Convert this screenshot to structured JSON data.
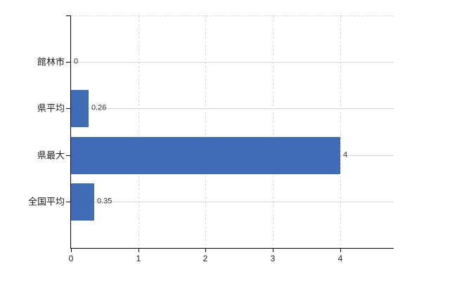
{
  "chart_data": {
    "type": "bar",
    "orientation": "horizontal",
    "title": "",
    "xlabel": "",
    "ylabel": "",
    "categories": [
      "館林市",
      "県平均",
      "県最大",
      "全国平均"
    ],
    "values": [
      0,
      0.26,
      4,
      0.35
    ],
    "value_labels": [
      "0",
      "0.26",
      "4",
      "0.35"
    ],
    "xlim": [
      0,
      4.8
    ],
    "xticks": [
      {
        "value": 0,
        "label": "0"
      },
      {
        "value": 1,
        "label": "1"
      },
      {
        "value": 2,
        "label": "2"
      },
      {
        "value": 3,
        "label": "3"
      },
      {
        "value": 4,
        "label": "4"
      }
    ],
    "grid": "on",
    "legend": "none",
    "colors": {
      "bar": "#3e6db5",
      "axis": "#000000",
      "gridline_solid": "#d9d9d9",
      "gridline_dashed": "#d4d4d4",
      "label_text": "#333333",
      "tick_text": "#222222"
    }
  }
}
